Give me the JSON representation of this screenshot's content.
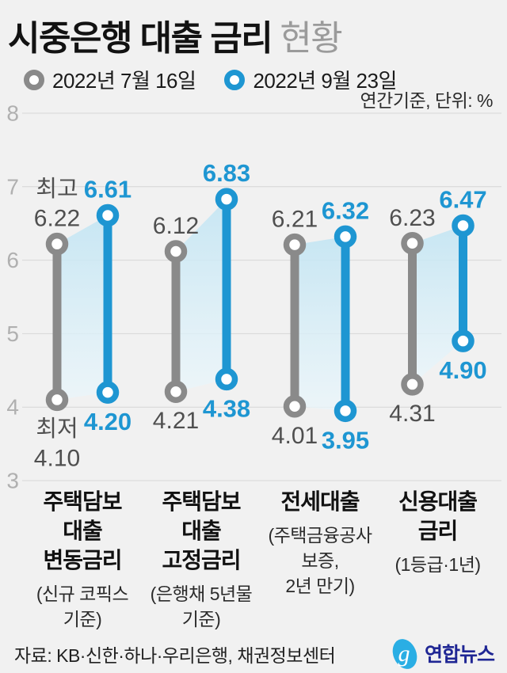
{
  "header": {
    "title_main": "시중은행 대출 금리",
    "title_sub": "현황",
    "legend": [
      {
        "label": "2022년 7월 16일",
        "color": "#8a8a8a"
      },
      {
        "label": "2022년 9월 23일",
        "color": "#1e96d2"
      }
    ],
    "unit_note": "연간기준, 단위: %"
  },
  "chart_data": {
    "type": "dumbbell-range",
    "title": "시중은행 대출 금리 현황",
    "unit": "%",
    "y_axis": {
      "min": 3,
      "max": 8,
      "ticks": [
        8,
        7,
        6,
        5,
        4,
        3
      ],
      "grid": true
    },
    "series": [
      {
        "name": "2022년 7월 16일",
        "color": "#8a8a8a"
      },
      {
        "name": "2022년 9월 23일",
        "color": "#1e96d2"
      }
    ],
    "annotations": {
      "high_label": "최고",
      "low_label": "최저"
    },
    "band_colors": {
      "top": "#c3e5f3",
      "bottom": "#eaf6fb"
    },
    "categories": [
      {
        "name_lines": [
          "주택담보",
          "대출",
          "변동금리"
        ],
        "note_lines": [
          "(신규 코픽스",
          "기준)"
        ],
        "values": {
          "jul16": {
            "high": 6.22,
            "low": 4.1
          },
          "sep23": {
            "high": 6.61,
            "low": 4.2
          }
        }
      },
      {
        "name_lines": [
          "주택담보",
          "대출",
          "고정금리"
        ],
        "note_lines": [
          "(은행채 5년물",
          "기준)"
        ],
        "values": {
          "jul16": {
            "high": 6.12,
            "low": 4.21
          },
          "sep23": {
            "high": 6.83,
            "low": 4.38
          }
        }
      },
      {
        "name_lines": [
          "전세대출"
        ],
        "note_lines": [
          "(주택금융공사",
          "보증,",
          "2년 만기)"
        ],
        "values": {
          "jul16": {
            "high": 6.21,
            "low": 4.01
          },
          "sep23": {
            "high": 6.32,
            "low": 3.95
          }
        }
      },
      {
        "name_lines": [
          "신용대출",
          "금리"
        ],
        "note_lines": [
          "(1등급·1년)"
        ],
        "values": {
          "jul16": {
            "high": 6.23,
            "low": 4.31
          },
          "sep23": {
            "high": 6.47,
            "low": 4.9
          }
        }
      }
    ]
  },
  "footer": {
    "source": "자료: KB·신한·하나·우리은행, 채권정보센터",
    "logo_text": "연합뉴스"
  }
}
